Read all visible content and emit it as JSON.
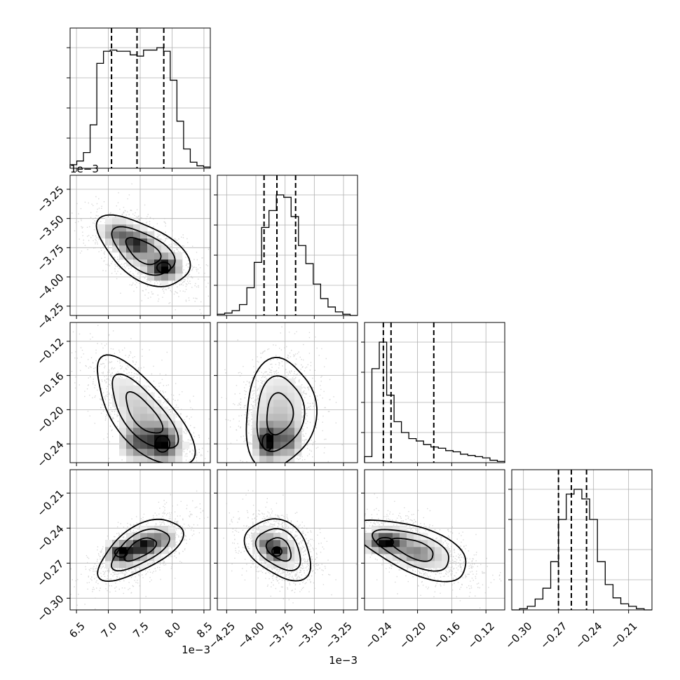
{
  "chart_data": {
    "type": "corner",
    "grid": true,
    "parameters": [
      {
        "index": 0,
        "ticks": [
          6.5,
          7.0,
          7.5,
          8.0,
          8.5
        ],
        "tick_labels": [
          "6.5",
          "7.0",
          "7.5",
          "8.0",
          "8.5"
        ],
        "range": [
          6.4,
          8.6
        ],
        "exponent_label": "1e−3",
        "quantiles": [
          7.05,
          7.45,
          7.87
        ],
        "histogram": [
          0.03,
          0.06,
          0.13,
          0.36,
          0.87,
          0.97,
          0.98,
          0.97,
          0.97,
          0.94,
          0.93,
          0.98,
          0.98,
          1.0,
          0.97,
          0.73,
          0.39,
          0.16,
          0.05,
          0.02,
          0.01
        ]
      },
      {
        "index": 1,
        "ticks": [
          -4.25,
          -4.0,
          -3.75,
          -3.5,
          -3.25
        ],
        "tick_labels": [
          "−4.25",
          "−4.00",
          "−3.75",
          "−3.50",
          "−3.25"
        ],
        "range": [
          -4.33,
          -3.13
        ],
        "exponent_label": "1e−3",
        "quantiles": [
          -3.93,
          -3.82,
          -3.66
        ],
        "histogram": [
          0.01,
          0.02,
          0.04,
          0.09,
          0.23,
          0.44,
          0.73,
          0.87,
          1.0,
          0.98,
          0.82,
          0.58,
          0.43,
          0.26,
          0.14,
          0.07,
          0.03,
          0.01,
          0.0
        ]
      },
      {
        "index": 2,
        "ticks": [
          -0.24,
          -0.2,
          -0.16,
          -0.12
        ],
        "tick_labels": [
          "−0.24",
          "−0.20",
          "−0.16",
          "−0.12"
        ],
        "range": [
          -0.262,
          -0.098
        ],
        "exponent_label": "",
        "quantiles": [
          -0.24,
          -0.231,
          -0.181
        ],
        "histogram": [
          0.05,
          0.78,
          1.0,
          0.56,
          0.34,
          0.25,
          0.2,
          0.18,
          0.15,
          0.13,
          0.12,
          0.1,
          0.09,
          0.07,
          0.06,
          0.05,
          0.04,
          0.02,
          0.01
        ]
      },
      {
        "index": 3,
        "ticks": [
          -0.3,
          -0.27,
          -0.24,
          -0.21
        ],
        "tick_labels": [
          "−0.30",
          "−0.27",
          "−0.24",
          "−0.21"
        ],
        "range": [
          -0.31,
          -0.19
        ],
        "exponent_label": "",
        "quantiles": [
          -0.27,
          -0.259,
          -0.246
        ],
        "histogram": [
          0.0,
          0.01,
          0.03,
          0.09,
          0.18,
          0.4,
          0.75,
          0.96,
          1.0,
          0.92,
          0.75,
          0.4,
          0.21,
          0.1,
          0.05,
          0.03,
          0.01,
          0.0
        ]
      }
    ],
    "pairs": [
      {
        "x": 0,
        "y": 1,
        "center": [
          7.55,
          -3.78
        ],
        "spread": [
          0.36,
          0.15
        ],
        "rho": -0.55,
        "peaks": [
          [
            7.87,
            -3.92,
            1.0
          ],
          [
            7.45,
            -3.72,
            0.7
          ],
          [
            7.15,
            -3.62,
            0.55
          ]
        ]
      },
      {
        "x": 0,
        "y": 2,
        "center": [
          7.55,
          -0.205
        ],
        "spread": [
          0.38,
          0.032
        ],
        "rho": -0.7,
        "peaks": [
          [
            7.85,
            -0.24,
            1.0
          ],
          [
            7.45,
            -0.238,
            0.75
          ]
        ]
      },
      {
        "x": 1,
        "y": 2,
        "center": [
          -3.8,
          -0.205
        ],
        "spread": [
          0.15,
          0.032
        ],
        "rho": 0.1,
        "peaks": [
          [
            -3.9,
            -0.238,
            1.0
          ],
          [
            -3.72,
            -0.236,
            0.6
          ]
        ]
      },
      {
        "x": 0,
        "y": 3,
        "center": [
          7.5,
          -0.258
        ],
        "spread": [
          0.33,
          0.013
        ],
        "rho": 0.62,
        "peaks": [
          [
            7.2,
            -0.261,
            1.0
          ],
          [
            7.55,
            -0.255,
            0.8
          ],
          [
            7.85,
            -0.249,
            0.45
          ]
        ]
      },
      {
        "x": 1,
        "y": 3,
        "center": [
          -3.8,
          -0.258
        ],
        "spread": [
          0.14,
          0.013
        ],
        "rho": -0.35,
        "peaks": [
          [
            -3.82,
            -0.26,
            1.0
          ],
          [
            -3.92,
            -0.252,
            0.6
          ]
        ]
      },
      {
        "x": 2,
        "y": 3,
        "center": [
          -0.205,
          -0.258
        ],
        "spread": [
          0.033,
          0.013
        ],
        "rho": -0.6,
        "peaks": [
          [
            -0.238,
            -0.252,
            1.0
          ],
          [
            -0.2,
            -0.262,
            0.35
          ]
        ]
      }
    ]
  }
}
